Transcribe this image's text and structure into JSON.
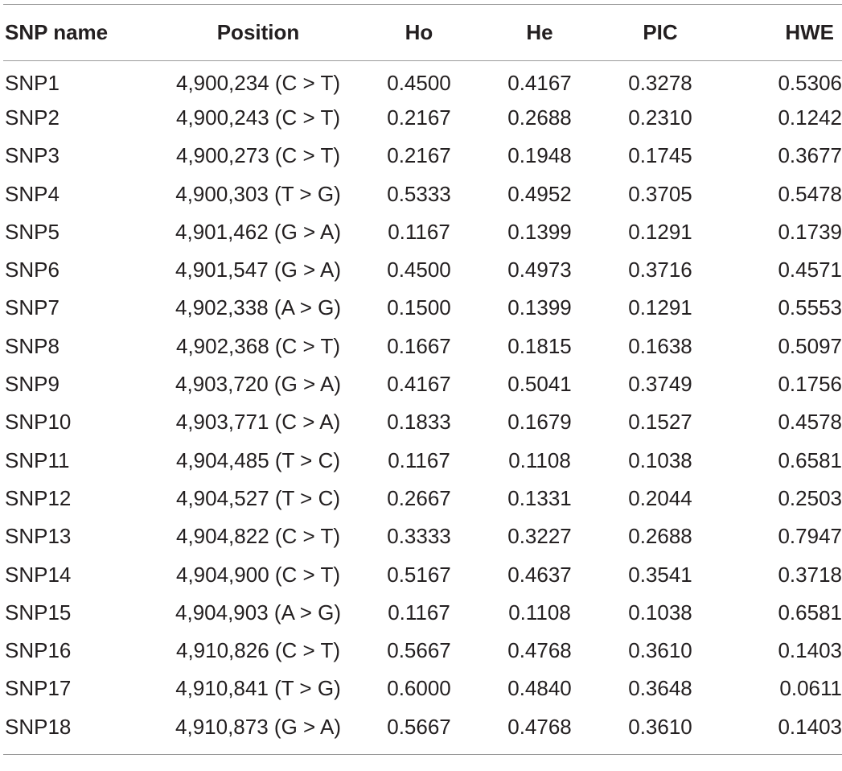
{
  "table": {
    "headers": [
      "SNP name",
      "Position",
      "Ho",
      "He",
      "PIC",
      "HWE"
    ],
    "rows": [
      [
        "SNP1",
        "4,900,234 (C > T)",
        "0.4500",
        "0.4167",
        "0.3278",
        "0.5306"
      ],
      [
        "SNP2",
        "4,900,243 (C > T)",
        "0.2167",
        "0.2688",
        "0.2310",
        "0.1242"
      ],
      [
        "SNP3",
        "4,900,273 (C > T)",
        "0.2167",
        "0.1948",
        "0.1745",
        "0.3677"
      ],
      [
        "SNP4",
        "4,900,303 (T > G)",
        "0.5333",
        "0.4952",
        "0.3705",
        "0.5478"
      ],
      [
        "SNP5",
        "4,901,462 (G > A)",
        "0.1167",
        "0.1399",
        "0.1291",
        "0.1739"
      ],
      [
        "SNP6",
        "4,901,547 (G > A)",
        "0.4500",
        "0.4973",
        "0.3716",
        "0.4571"
      ],
      [
        "SNP7",
        "4,902,338 (A > G)",
        "0.1500",
        "0.1399",
        "0.1291",
        "0.5553"
      ],
      [
        "SNP8",
        "4,902,368 (C > T)",
        "0.1667",
        "0.1815",
        "0.1638",
        "0.5097"
      ],
      [
        "SNP9",
        "4,903,720 (G > A)",
        "0.4167",
        "0.5041",
        "0.3749",
        "0.1756"
      ],
      [
        "SNP10",
        "4,903,771 (C > A)",
        "0.1833",
        "0.1679",
        "0.1527",
        "0.4578"
      ],
      [
        "SNP11",
        "4,904,485 (T > C)",
        "0.1167",
        "0.1108",
        "0.1038",
        "0.6581"
      ],
      [
        "SNP12",
        "4,904,527 (T > C)",
        "0.2667",
        "0.1331",
        "0.2044",
        "0.2503"
      ],
      [
        "SNP13",
        "4,904,822 (C > T)",
        "0.3333",
        "0.3227",
        "0.2688",
        "0.7947"
      ],
      [
        "SNP14",
        "4,904,900 (C > T)",
        "0.5167",
        "0.4637",
        "0.3541",
        "0.3718"
      ],
      [
        "SNP15",
        "4,904,903 (A > G)",
        "0.1167",
        "0.1108",
        "0.1038",
        "0.6581"
      ],
      [
        "SNP16",
        "4,910,826 (C > T)",
        "0.5667",
        "0.4768",
        "0.3610",
        "0.1403"
      ],
      [
        "SNP17",
        "4,910,841 (T > G)",
        "0.6000",
        "0.4840",
        "0.3648",
        "0.0611"
      ],
      [
        "SNP18",
        "4,910,873 (G > A)",
        "0.5667",
        "0.4768",
        "0.3610",
        "0.1403"
      ]
    ]
  }
}
